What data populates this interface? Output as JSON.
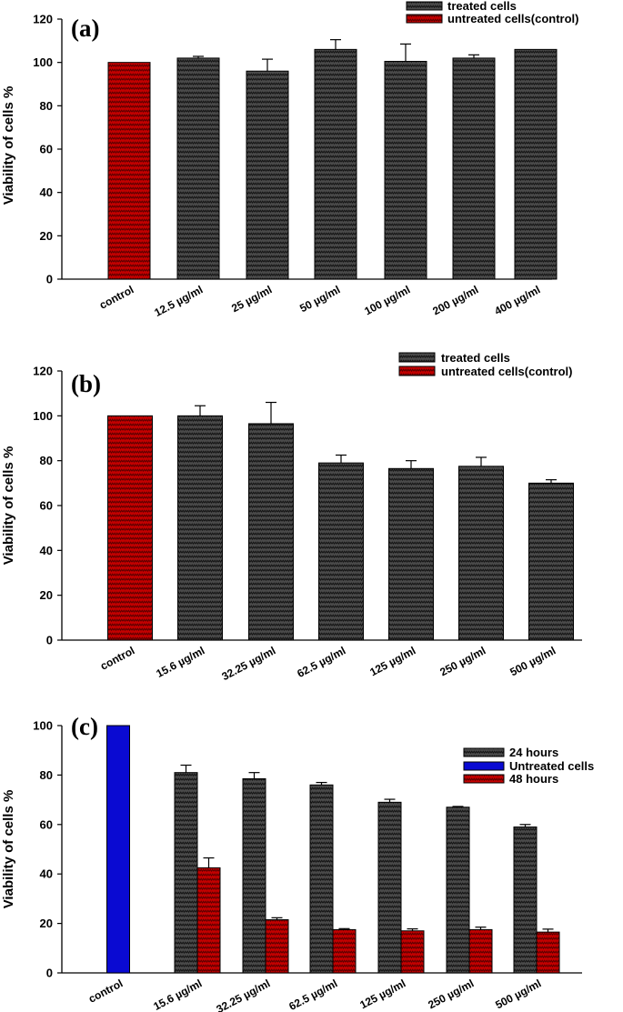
{
  "chart_data": [
    {
      "type": "bar",
      "panel_label": "(a)",
      "ylabel": "Viability of cells %",
      "xlabel": "",
      "ylim": [
        0,
        120
      ],
      "yticks": [
        0,
        20,
        40,
        60,
        80,
        100,
        120
      ],
      "categories": [
        "control",
        "12.5 µg/ml",
        "25 µg/ml",
        "50 µg/ml",
        "100 µg/ml",
        "200 µg/ml",
        "400 µg/ml"
      ],
      "legend_position": "top-right",
      "series": [
        {
          "name": "treated cells",
          "color": "#303030",
          "pattern": "zigzag-gray",
          "values": [
            null,
            102,
            96,
            106,
            100.5,
            102,
            106
          ],
          "errors": [
            null,
            0.8,
            5.5,
            4.5,
            8,
            1.5,
            0
          ]
        },
        {
          "name": "untreated cells(control)",
          "color": "#b00000",
          "pattern": "zigzag-red",
          "values": [
            100,
            null,
            null,
            null,
            null,
            null,
            null
          ],
          "errors": [
            0,
            null,
            null,
            null,
            null,
            null,
            null
          ]
        }
      ]
    },
    {
      "type": "bar",
      "panel_label": "(b)",
      "ylabel": "Viability of cells %",
      "xlabel": "",
      "ylim": [
        0,
        120
      ],
      "yticks": [
        0,
        20,
        40,
        60,
        80,
        100,
        120
      ],
      "categories": [
        "control",
        "15.6 µg/ml",
        "32.25 µg/ml",
        "62.5 µg/ml",
        "125 µg/ml",
        "250 µg/ml",
        "500 µg/ml"
      ],
      "legend_position": "top-right",
      "series": [
        {
          "name": "treated cells",
          "color": "#303030",
          "pattern": "zigzag-gray",
          "values": [
            null,
            100,
            96.5,
            79,
            76.5,
            77.5,
            70
          ],
          "errors": [
            null,
            4.5,
            9.5,
            3.5,
            3.5,
            4,
            1.5
          ]
        },
        {
          "name": "untreated cells(control)",
          "color": "#b00000",
          "pattern": "zigzag-red",
          "values": [
            100,
            null,
            null,
            null,
            null,
            null,
            null
          ],
          "errors": [
            0,
            null,
            null,
            null,
            null,
            null,
            null
          ]
        }
      ]
    },
    {
      "type": "bar",
      "panel_label": "(c)",
      "ylabel": "Viability of cells %",
      "xlabel": "",
      "ylim": [
        0,
        100
      ],
      "yticks": [
        0,
        20,
        40,
        60,
        80,
        100
      ],
      "categories": [
        "control",
        "15.6 µg/ml",
        "32.25 µg/ml",
        "62.5 µg/ml",
        "125 µg/ml",
        "250 µg/ml",
        "500 µg/ml"
      ],
      "legend_position": "right",
      "series": [
        {
          "name": "24 hours",
          "color": "#303030",
          "pattern": "zigzag-gray",
          "values": [
            null,
            81,
            78.5,
            76,
            69,
            67,
            59
          ],
          "errors": [
            null,
            3,
            2.5,
            1,
            1.2,
            0.3,
            1
          ]
        },
        {
          "name": "Untreated cells",
          "color": "#0000cc",
          "pattern": "solid-blue",
          "values": [
            100,
            null,
            null,
            null,
            null,
            null,
            null
          ],
          "errors": [
            0,
            null,
            null,
            null,
            null,
            null,
            null
          ]
        },
        {
          "name": "48 hours",
          "color": "#b00000",
          "pattern": "zigzag-red",
          "values": [
            null,
            42.5,
            21.5,
            17.5,
            17,
            17.5,
            16.5
          ],
          "errors": [
            null,
            4,
            0.8,
            0.4,
            0.8,
            1,
            1.2
          ]
        }
      ]
    }
  ]
}
